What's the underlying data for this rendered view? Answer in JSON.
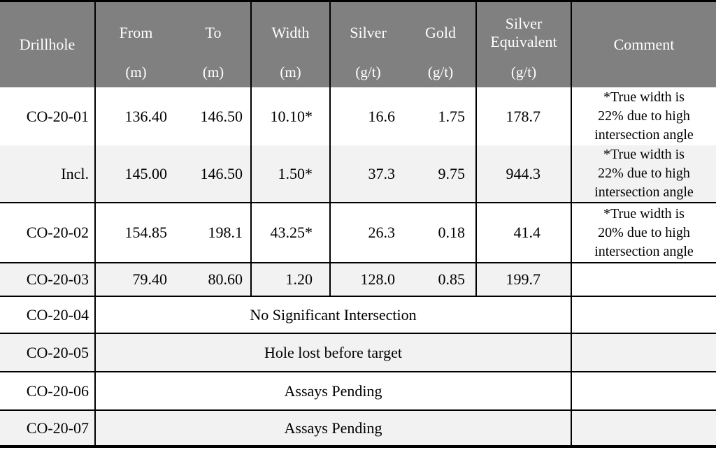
{
  "table": {
    "colors": {
      "header_bg": "#808080",
      "header_text": "#ffffff",
      "alt_row_bg": "#f2f2f2",
      "border": "#000000",
      "body_text": "#000000"
    },
    "header": {
      "drillhole": "Drillhole",
      "from": "From",
      "from_unit": "(m)",
      "to": "To",
      "to_unit": "(m)",
      "width": "Width",
      "width_unit": "(m)",
      "silver": "Silver",
      "silver_unit": "(g/t)",
      "gold": "Gold",
      "gold_unit": "(g/t)",
      "silver_equivalent": "Silver Equivalent",
      "silver_equivalent_unit": "(g/t)",
      "comment": "Comment"
    },
    "rows": [
      {
        "drillhole": "CO-20-01",
        "from": "136.40",
        "to": "146.50",
        "width": "10.10*",
        "silver": "16.6",
        "gold": "1.75",
        "silver_equivalent": "178.7",
        "comment": [
          "*True width is",
          "22% due to high",
          "intersection angle"
        ]
      },
      {
        "drillhole": "Incl.",
        "from": "145.00",
        "to": "146.50",
        "width": "1.50*",
        "silver": "37.3",
        "gold": "9.75",
        "silver_equivalent": "944.3",
        "comment": [
          "*True width is",
          "22% due to high",
          "intersection angle"
        ]
      },
      {
        "drillhole": "CO-20-02",
        "from": "154.85",
        "to": "198.1",
        "width": "43.25*",
        "silver": "26.3",
        "gold": "0.18",
        "silver_equivalent": "41.4",
        "comment": [
          "*True width is",
          "20% due to high",
          "intersection angle"
        ]
      },
      {
        "drillhole": "CO-20-03",
        "from": "79.40",
        "to": "80.60",
        "width": "1.20",
        "silver": "128.0",
        "gold": "0.85",
        "silver_equivalent": "199.7",
        "comment": ""
      }
    ],
    "note_rows": [
      {
        "drillhole": "CO-20-04",
        "note": "No Significant Intersection",
        "comment": ""
      },
      {
        "drillhole": "CO-20-05",
        "note": "Hole lost before target",
        "comment": ""
      },
      {
        "drillhole": "CO-20-06",
        "note": "Assays Pending",
        "comment": ""
      },
      {
        "drillhole": "CO-20-07",
        "note": "Assays Pending",
        "comment": ""
      }
    ]
  }
}
